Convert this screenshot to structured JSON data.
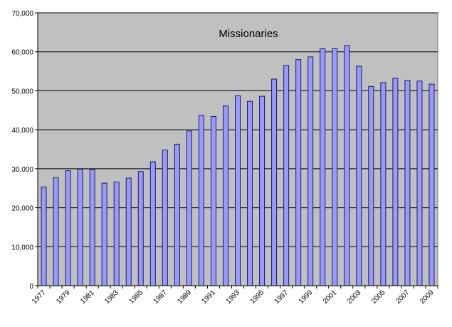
{
  "chart_data": {
    "type": "bar",
    "title": "Missionaries",
    "xlabel": "",
    "ylabel": "",
    "ylim": [
      0,
      70000
    ],
    "yticks": [
      0,
      10000,
      20000,
      30000,
      40000,
      50000,
      60000,
      70000
    ],
    "ytick_labels": [
      "0",
      "10,000",
      "20,000",
      "30,000",
      "40,000",
      "50,000",
      "60,000",
      "70,000"
    ],
    "grid": true,
    "legend": "none",
    "categories": [
      "1977",
      "1978",
      "1979",
      "1980",
      "1981",
      "1982",
      "1983",
      "1984",
      "1985",
      "1986",
      "1987",
      "1988",
      "1989",
      "1990",
      "1991",
      "1992",
      "1993",
      "1994",
      "1995",
      "1996",
      "1997",
      "1998",
      "1999",
      "2000",
      "2001",
      "2002",
      "2003",
      "2004",
      "2005",
      "2006",
      "2007",
      "2008",
      "2009"
    ],
    "xtick_labels": [
      "1977",
      "1979",
      "1981",
      "1983",
      "1985",
      "1987",
      "1989",
      "1991",
      "1993",
      "1995",
      "1997",
      "1999",
      "2001",
      "2003",
      "2005",
      "2007",
      "2009"
    ],
    "values": [
      25300,
      27700,
      29500,
      29900,
      29800,
      26300,
      26600,
      27600,
      29300,
      31800,
      34800,
      36300,
      39700,
      43700,
      43400,
      46100,
      48700,
      47300,
      48600,
      53000,
      56500,
      58000,
      58700,
      60800,
      60800,
      61600,
      56300,
      51100,
      52100,
      53200,
      52700,
      52500,
      51700
    ],
    "colors": {
      "plot_background": "#c0c0c0",
      "bar_fill": "#9999ff",
      "bar_stroke": "#1a1a66",
      "grid": "#000000",
      "axis": "#808080"
    }
  }
}
